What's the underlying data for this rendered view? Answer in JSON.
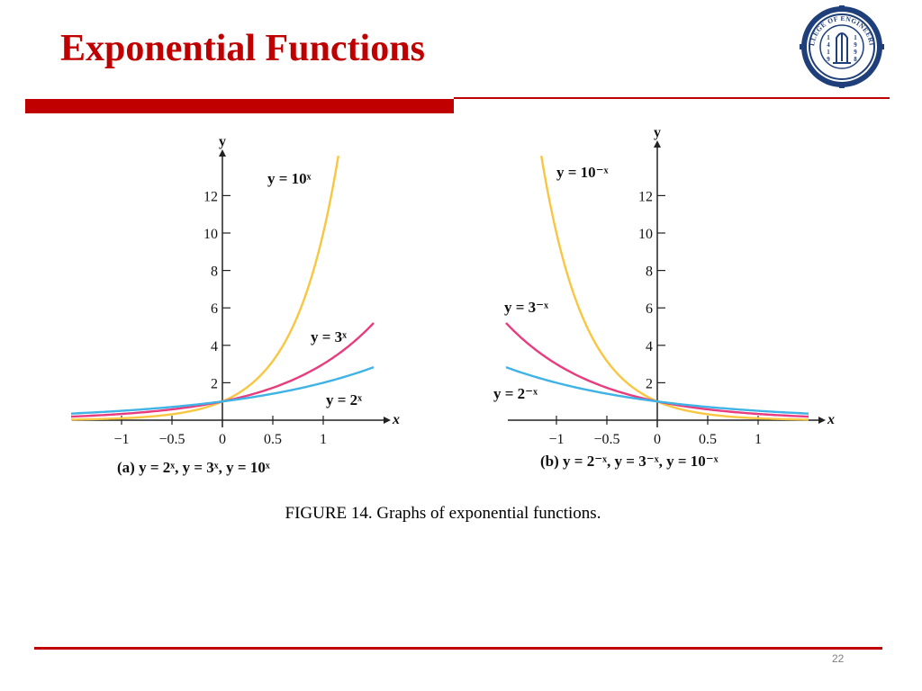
{
  "slide": {
    "title": "Exponential Functions",
    "caption": "FIGURE 14. Graphs of exponential functions.",
    "page_number": "22",
    "accent_color": "#c00000",
    "logo": {
      "icon": "college-of-engineering-seal",
      "text": "COLLEGE OF ENGINEERING",
      "years_left": [
        "1",
        "4",
        "1",
        "9"
      ],
      "years_right": [
        "1",
        "9",
        "9",
        "8"
      ]
    }
  },
  "chart_data": [
    {
      "type": "line",
      "panel": "a",
      "caption_label": "(a)",
      "caption_formula": "y = 2ˣ, y = 3ˣ, y = 10ˣ",
      "xlabel": "x",
      "ylabel": "y",
      "xlim": [
        -1.5,
        1.5
      ],
      "ylim": [
        0,
        14
      ],
      "x_ticks": [
        -1,
        -0.5,
        0,
        0.5,
        1
      ],
      "x_tick_labels": [
        "−1",
        "−0.5",
        "0",
        "0.5",
        "1"
      ],
      "y_ticks": [
        2,
        4,
        6,
        8,
        10,
        12
      ],
      "y_tick_labels": [
        "2",
        "4",
        "6",
        "8",
        "10",
        "12"
      ],
      "series": [
        {
          "name": "y = 10ˣ",
          "base": 10,
          "color": "#f8c640",
          "x_range": [
            -1.5,
            1.15
          ]
        },
        {
          "name": "y = 3ˣ",
          "base": 3,
          "color": "#e83c7e",
          "x_range": [
            -1.5,
            1.5
          ]
        },
        {
          "name": "y = 2ˣ",
          "base": 2,
          "color": "#3fb3e6",
          "x_range": [
            -1.5,
            1.5
          ]
        }
      ]
    },
    {
      "type": "line",
      "panel": "b",
      "caption_label": "(b)",
      "caption_formula": "y = 2⁻ˣ, y = 3⁻ˣ, y = 10⁻ˣ",
      "xlabel": "x",
      "ylabel": "y",
      "xlim": [
        -1.5,
        1.5
      ],
      "ylim": [
        0,
        14
      ],
      "x_ticks": [
        -1,
        -0.5,
        0,
        0.5,
        1
      ],
      "x_tick_labels": [
        "−1",
        "−0.5",
        "0",
        "0.5",
        "1"
      ],
      "y_ticks": [
        2,
        4,
        6,
        8,
        10,
        12
      ],
      "y_tick_labels": [
        "2",
        "4",
        "6",
        "8",
        "10",
        "12"
      ],
      "series": [
        {
          "name": "y = 10⁻ˣ",
          "base": 0.1,
          "color": "#f8c640",
          "x_range": [
            -1.15,
            1.5
          ]
        },
        {
          "name": "y = 3⁻ˣ",
          "base": 0.3333333,
          "color": "#e83c7e",
          "x_range": [
            -1.5,
            1.5
          ]
        },
        {
          "name": "y = 2⁻ˣ",
          "base": 0.5,
          "color": "#3fb3e6",
          "x_range": [
            -1.5,
            1.5
          ]
        }
      ]
    }
  ]
}
